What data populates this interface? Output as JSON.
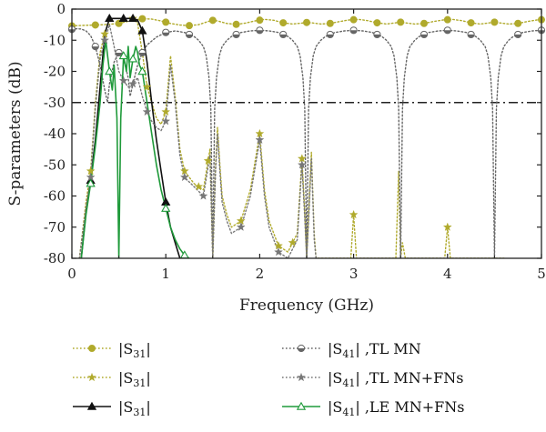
{
  "chart_data": {
    "type": "line",
    "xlabel": "Frequency (GHz)",
    "ylabel": "S-parameters (dB)",
    "xlim": [
      0,
      5
    ],
    "ylim": [
      -80,
      0
    ],
    "xticks": [
      0,
      1,
      2,
      3,
      4,
      5
    ],
    "yticks": [
      0,
      -10,
      -20,
      -30,
      -40,
      -50,
      -60,
      -70,
      -80
    ],
    "reference_line": {
      "y": -30,
      "style": "dash-dot",
      "color": "#222222"
    },
    "grid": false,
    "legend_placement": "below",
    "series": [
      {
        "name": "|S31|",
        "legend_base": "S",
        "legend_sub": "31",
        "legend_suffix": "",
        "color": "#b0aa2c",
        "line": "dotted",
        "marker": "circle",
        "x": [
          0,
          0.05,
          0.15,
          0.25,
          0.35,
          0.5,
          0.65,
          0.75,
          0.85,
          0.95,
          1.05,
          1.15,
          1.25,
          1.35,
          1.45,
          1.5,
          1.55,
          1.65,
          1.75,
          1.85,
          1.95,
          2.05,
          2.15,
          2.25,
          2.35,
          2.45,
          2.5,
          2.55,
          2.65,
          2.75,
          2.85,
          2.95,
          3.05,
          3.15,
          3.25,
          3.35,
          3.45,
          3.5,
          3.55,
          3.65,
          3.75,
          3.85,
          3.95,
          4.05,
          4.15,
          4.25,
          4.35,
          4.45,
          4.5,
          4.55,
          4.65,
          4.75,
          4.85,
          4.95,
          5.0
        ],
        "y": [
          -5.4,
          -5.3,
          -5.2,
          -5.1,
          -5.0,
          -4.6,
          -3.6,
          -3.1,
          -3.2,
          -3.8,
          -4.6,
          -5.1,
          -5.3,
          -5.0,
          -4.0,
          -3.6,
          -3.8,
          -4.6,
          -4.9,
          -4.5,
          -3.8,
          -3.3,
          -3.6,
          -4.4,
          -4.8,
          -4.5,
          -4.3,
          -4.4,
          -4.8,
          -4.6,
          -4.0,
          -3.5,
          -3.3,
          -3.7,
          -4.4,
          -4.8,
          -4.4,
          -4.2,
          -4.4,
          -4.8,
          -4.6,
          -4.0,
          -3.5,
          -3.3,
          -3.7,
          -4.4,
          -4.8,
          -4.4,
          -4.2,
          -4.4,
          -4.8,
          -4.6,
          -4.0,
          -3.5,
          -3.4
        ],
        "marker_x": [
          0.0,
          0.25,
          0.5,
          0.75,
          1.0,
          1.25,
          1.5,
          1.75,
          2.0,
          2.25,
          2.5,
          2.75,
          3.0,
          3.25,
          3.5,
          3.75,
          4.0,
          4.25,
          4.5,
          4.75,
          5.0
        ]
      },
      {
        "name": "|S31|",
        "legend_base": "S",
        "legend_sub": "31",
        "legend_suffix": "",
        "color": "#b0aa2c",
        "line": "dotted",
        "marker": "star",
        "x": [
          0.08,
          0.15,
          0.2,
          0.25,
          0.3,
          0.35,
          0.37,
          0.4,
          0.45,
          0.5,
          0.55,
          0.6,
          0.65,
          0.7,
          0.75,
          0.8,
          0.85,
          0.9,
          0.95,
          1.0,
          1.05,
          1.1,
          1.15,
          1.2,
          1.3,
          1.4,
          1.47,
          1.5,
          1.53,
          1.55,
          1.58,
          1.6,
          1.65,
          1.7,
          1.8,
          1.9,
          2.0,
          2.05,
          2.1,
          2.2,
          2.3,
          2.4,
          2.45,
          2.48,
          2.5,
          2.52,
          2.55,
          2.58,
          2.6,
          2.65,
          2.7,
          2.8,
          2.9,
          2.97,
          3.0,
          3.03,
          3.1,
          3.2,
          3.3,
          3.4,
          3.45,
          3.48,
          3.5,
          3.52,
          3.55,
          3.58,
          3.6,
          3.7,
          3.8,
          3.9,
          3.97,
          4.0,
          4.03,
          4.1,
          4.2,
          4.3,
          4.4,
          4.45,
          4.48,
          4.5,
          4.52,
          4.55,
          4.58,
          4.6
        ],
        "y": [
          -80,
          -62,
          -52,
          -30,
          -14,
          -8,
          -6,
          -3,
          -3,
          -3,
          -3,
          -3,
          -3,
          -4.5,
          -14,
          -25,
          -30,
          -35,
          -37,
          -33,
          -15,
          -28,
          -45,
          -52,
          -56,
          -58,
          -45,
          -80,
          -50,
          -38,
          -52,
          -60,
          -66,
          -70,
          -68,
          -58,
          -40,
          -58,
          -68,
          -76,
          -78,
          -72,
          -48,
          -65,
          -80,
          -66,
          -46,
          -72,
          -80,
          -80,
          -80,
          -80,
          -80,
          -80,
          -66,
          -80,
          -80,
          -80,
          -80,
          -80,
          -80,
          -52,
          -80,
          -75,
          -80,
          -80,
          -80,
          -80,
          -80,
          -80,
          -80,
          -70,
          -80,
          -80,
          -80,
          -80,
          -80,
          -80,
          -80,
          -80,
          -80,
          -80,
          -80,
          -80
        ],
        "marker_x": [
          0.2,
          0.35,
          0.65,
          0.8,
          1.0,
          1.2,
          1.35,
          1.45,
          1.8,
          2.0,
          2.2,
          2.35,
          2.45,
          2.6,
          3.0,
          4.0
        ]
      },
      {
        "name": "|S31|",
        "legend_base": "S",
        "legend_sub": "31",
        "legend_suffix": "",
        "color": "#111111",
        "line": "solid",
        "marker": "triangle",
        "x": [
          0.1,
          0.15,
          0.2,
          0.25,
          0.3,
          0.35,
          0.4,
          0.45,
          0.5,
          0.55,
          0.6,
          0.65,
          0.7,
          0.75,
          0.8,
          0.85,
          0.9,
          0.95,
          1.0,
          1.05,
          1.1,
          1.15
        ],
        "y": [
          -80,
          -65,
          -55,
          -42,
          -25,
          -8,
          -3,
          -3,
          -3,
          -3,
          -3,
          -3,
          -3.5,
          -7,
          -17,
          -30,
          -42,
          -52,
          -62,
          -70,
          -75,
          -80
        ],
        "marker_x": [
          0.2,
          0.4,
          0.55,
          0.65,
          0.75,
          1.0
        ]
      },
      {
        "name": "|S41|, TL MN",
        "legend_base": "S",
        "legend_sub": "41",
        "legend_suffix": " ,TL MN",
        "color": "#666666",
        "line": "dotted",
        "marker": "circle-half",
        "x": [
          0,
          0.05,
          0.1,
          0.15,
          0.2,
          0.25,
          0.3,
          0.35,
          0.38,
          0.4,
          0.45,
          0.5,
          0.55,
          0.6,
          0.62,
          0.65,
          0.7,
          0.75,
          0.8,
          0.9,
          1.0,
          1.1,
          1.2,
          1.3,
          1.35,
          1.4,
          1.43,
          1.46,
          1.48,
          1.5,
          1.52,
          1.54,
          1.57,
          1.6,
          1.65,
          1.7,
          1.8,
          1.9,
          2.0,
          2.1,
          2.2,
          2.3,
          2.35,
          2.4,
          2.43,
          2.46,
          2.48,
          2.5,
          2.52,
          2.54,
          2.57,
          2.6,
          2.65,
          2.7,
          2.8,
          2.9,
          3.0,
          3.1,
          3.2,
          3.3,
          3.35,
          3.4,
          3.43,
          3.46,
          3.48,
          3.5,
          3.52,
          3.54,
          3.57,
          3.6,
          3.65,
          3.7,
          3.8,
          3.9,
          4.0,
          4.1,
          4.2,
          4.3,
          4.35,
          4.4,
          4.43,
          4.46,
          4.48,
          4.5,
          4.52,
          4.54,
          4.57,
          4.6,
          4.65,
          4.7,
          4.8,
          4.9,
          5.0
        ],
        "y": [
          -6.5,
          -6.3,
          -6.4,
          -7,
          -8.5,
          -12,
          -18,
          -26,
          -30,
          -24,
          -17,
          -14,
          -16,
          -22,
          -28,
          -24,
          -18,
          -14,
          -11.5,
          -9,
          -7.5,
          -7,
          -7.5,
          -8.8,
          -10,
          -12,
          -15,
          -22,
          -32,
          -80,
          -32,
          -22,
          -15,
          -12,
          -10,
          -8.8,
          -7.5,
          -7,
          -6.8,
          -7,
          -7.5,
          -8.8,
          -10,
          -12,
          -15,
          -22,
          -32,
          -80,
          -32,
          -22,
          -15,
          -12,
          -10,
          -8.8,
          -7.5,
          -7,
          -6.8,
          -7,
          -7.5,
          -8.8,
          -10,
          -12,
          -15,
          -22,
          -32,
          -80,
          -32,
          -22,
          -15,
          -12,
          -10,
          -8.8,
          -7.5,
          -7,
          -6.8,
          -7,
          -7.5,
          -8.8,
          -10,
          -12,
          -15,
          -22,
          -32,
          -80,
          -32,
          -22,
          -15,
          -12,
          -10,
          -8.8,
          -7.5,
          -7,
          -6.8
        ],
        "marker_x": [
          0.0,
          0.25,
          0.5,
          0.75,
          1.0,
          1.25,
          1.75,
          2.0,
          2.25,
          2.75,
          3.0,
          3.25,
          3.75,
          4.0,
          4.25,
          4.75,
          5.0
        ]
      },
      {
        "name": "|S41|, TL MN+FNs",
        "legend_base": "S",
        "legend_sub": "41",
        "legend_suffix": " ,TL MN+FNs",
        "color": "#777777",
        "line": "dotted",
        "marker": "star",
        "x": [
          0.08,
          0.15,
          0.2,
          0.25,
          0.3,
          0.35,
          0.37,
          0.4,
          0.45,
          0.5,
          0.55,
          0.6,
          0.65,
          0.7,
          0.75,
          0.8,
          0.85,
          0.9,
          0.95,
          1.0,
          1.05,
          1.1,
          1.15,
          1.2,
          1.3,
          1.4,
          1.47,
          1.5,
          1.53,
          1.55,
          1.58,
          1.6,
          1.65,
          1.7,
          1.8,
          1.9,
          2.0,
          2.05,
          2.1,
          2.2,
          2.3,
          2.4,
          2.45,
          2.48,
          2.5,
          2.52,
          2.55,
          2.58,
          2.6
        ],
        "y": [
          -80,
          -64,
          -54,
          -32,
          -16,
          -10,
          -8,
          -5,
          -12,
          -20,
          -23,
          -25,
          -24,
          -22,
          -28,
          -33,
          -36,
          -38,
          -39,
          -36,
          -18,
          -30,
          -47,
          -54,
          -57,
          -60,
          -47,
          -80,
          -52,
          -40,
          -54,
          -62,
          -68,
          -72,
          -70,
          -60,
          -42,
          -60,
          -70,
          -78,
          -80,
          -74,
          -50,
          -67,
          -80,
          -68,
          -48,
          -74,
          -80
        ],
        "marker_x": [
          0.2,
          0.35,
          0.55,
          0.65,
          0.8,
          1.0,
          1.2,
          1.4,
          1.8,
          2.0,
          2.2,
          2.45,
          4.0
        ]
      },
      {
        "name": "|S41|, LE MN+FNs",
        "legend_base": "S",
        "legend_sub": "41",
        "legend_suffix": " ,LE MN+FNs",
        "color": "#1f9a3a",
        "line": "solid",
        "marker": "triangle-open",
        "x": [
          0.1,
          0.15,
          0.2,
          0.25,
          0.3,
          0.33,
          0.36,
          0.4,
          0.43,
          0.45,
          0.48,
          0.5,
          0.52,
          0.55,
          0.58,
          0.6,
          0.62,
          0.65,
          0.68,
          0.7,
          0.72,
          0.75,
          0.8,
          0.85,
          0.9,
          0.95,
          1.0,
          1.05,
          1.1,
          1.15,
          1.2,
          1.25
        ],
        "y": [
          -80,
          -66,
          -56,
          -44,
          -30,
          -18,
          -10,
          -20,
          -26,
          -18,
          -35,
          -80,
          -35,
          -15,
          -20,
          -12,
          -22,
          -16,
          -12,
          -14,
          -18,
          -20,
          -30,
          -40,
          -50,
          -58,
          -64,
          -70,
          -74,
          -77,
          -79,
          -80
        ],
        "marker_x": [
          0.2,
          0.4,
          0.55,
          0.65,
          0.75,
          1.0,
          1.2
        ]
      }
    ]
  }
}
